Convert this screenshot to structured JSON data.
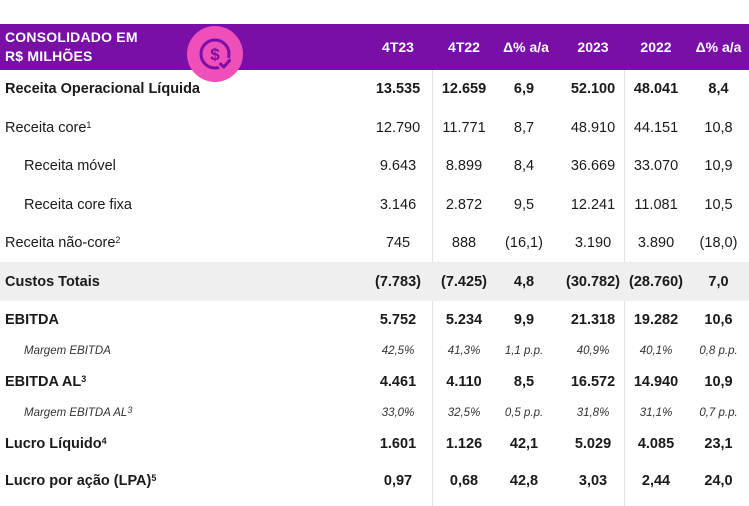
{
  "header": {
    "title_line1": "CONSOLIDADO EM",
    "title_line2": "R$ MILHÕES",
    "icon": "money-check-icon",
    "columns": [
      "4T23",
      "4T22",
      "Δ% a/a",
      "2023",
      "2022",
      "Δ% a/a"
    ]
  },
  "colors": {
    "header_bg": "#7a0fa8",
    "icon_bg": "#ee4fb9",
    "shaded_row": "#efefef"
  },
  "rows": [
    {
      "label": "Receita Operacional Líquida",
      "sup": "",
      "values": [
        "13.535",
        "12.659",
        "6,9",
        "52.100",
        "48.041",
        "8,4"
      ]
    },
    {
      "label": "Receita core",
      "sup": "1",
      "values": [
        "12.790",
        "11.771",
        "8,7",
        "48.910",
        "44.151",
        "10,8"
      ]
    },
    {
      "label": "Receita móvel",
      "sup": "",
      "values": [
        "9.643",
        "8.899",
        "8,4",
        "36.669",
        "33.070",
        "10,9"
      ]
    },
    {
      "label": "Receita core fixa",
      "sup": "",
      "values": [
        "3.146",
        "2.872",
        "9,5",
        "12.241",
        "11.081",
        "10,5"
      ]
    },
    {
      "label": "Receita não-core",
      "sup": "2",
      "values": [
        "745",
        "888",
        "(16,1)",
        "3.190",
        "3.890",
        "(18,0)"
      ]
    },
    {
      "label": "Custos Totais",
      "sup": "",
      "values": [
        "(7.783)",
        "(7.425)",
        "4,8",
        "(30.782)",
        "(28.760)",
        "7,0"
      ]
    },
    {
      "label": "EBITDA",
      "sup": "",
      "values": [
        "5.752",
        "5.234",
        "9,9",
        "21.318",
        "19.282",
        "10,6"
      ]
    },
    {
      "label": "Margem EBITDA",
      "sup": "",
      "values": [
        "42,5%",
        "41,3%",
        "1,1 p.p.",
        "40,9%",
        "40,1%",
        "0,8 p.p."
      ]
    },
    {
      "label": "EBITDA AL",
      "sup": "3",
      "values": [
        "4.461",
        "4.110",
        "8,5",
        "16.572",
        "14.940",
        "10,9"
      ]
    },
    {
      "label": "Margem EBITDA AL",
      "sup": "3",
      "values": [
        "33,0%",
        "32,5%",
        "0,5 p.p.",
        "31,8%",
        "31,1%",
        "0,7 p.p."
      ]
    },
    {
      "label": "Lucro Líquido",
      "sup": "4",
      "values": [
        "1.601",
        "1.126",
        "42,1",
        "5.029",
        "4.085",
        "23,1"
      ]
    },
    {
      "label": "Lucro por ação (LPA)",
      "sup": "5",
      "values": [
        "0,97",
        "0,68",
        "42,8",
        "3,03",
        "2,44",
        "24,0"
      ]
    }
  ]
}
